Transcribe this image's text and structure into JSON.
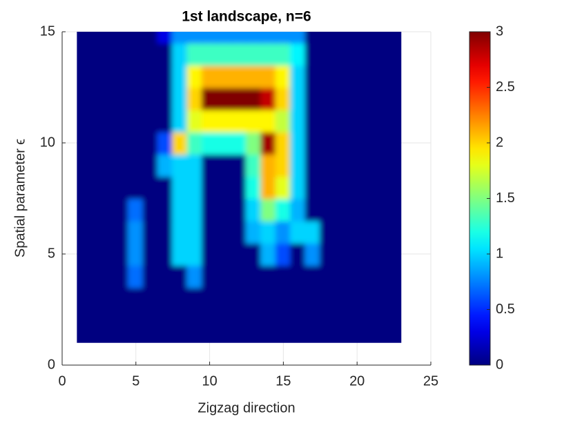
{
  "chart_data": {
    "type": "heatmap",
    "title": "1st landscape, n=6",
    "xlabel": "Zigzag direction",
    "ylabel": "Spatial parameter ϵ",
    "colormap": "jet",
    "grid": true,
    "xlim": [
      0,
      25
    ],
    "xticks": [
      0,
      5,
      10,
      15,
      20,
      25
    ],
    "ylim": [
      0,
      15
    ],
    "yticks": [
      0,
      5,
      10,
      15
    ],
    "clim": [
      0,
      3
    ],
    "cticks": [
      0,
      0.5,
      1,
      1.5,
      2,
      2.5,
      3
    ],
    "x": [
      1,
      2,
      3,
      4,
      5,
      6,
      7,
      8,
      9,
      10,
      11,
      12,
      13,
      14,
      15,
      16,
      17,
      18,
      19,
      20,
      21,
      22,
      23
    ],
    "y": [
      1,
      2,
      3,
      4,
      5,
      6,
      7,
      8,
      9,
      10,
      11,
      12,
      13,
      14,
      15
    ],
    "z": [
      [
        0,
        0,
        0,
        0,
        0,
        0,
        0,
        0,
        0,
        0,
        0,
        0,
        0,
        0,
        0,
        0,
        0,
        0,
        0,
        0,
        0,
        0,
        0
      ],
      [
        0,
        0,
        0,
        0,
        0,
        0,
        0,
        0,
        0,
        0,
        0,
        0,
        0,
        0,
        0,
        0,
        0,
        0,
        0,
        0,
        0,
        0,
        0
      ],
      [
        0,
        0,
        0,
        0,
        0,
        0,
        0,
        0,
        0,
        0,
        0,
        0,
        0,
        0,
        0,
        0,
        0,
        0,
        0,
        0,
        0,
        0,
        0
      ],
      [
        0,
        0,
        0,
        0,
        0.7,
        0,
        0,
        0,
        0.8,
        0,
        0,
        0,
        0,
        0,
        0,
        0,
        0,
        0,
        0,
        0,
        0,
        0,
        0
      ],
      [
        0,
        0,
        0,
        0,
        0.8,
        0,
        0,
        1,
        1,
        0,
        0,
        0,
        0,
        0.9,
        0.6,
        0,
        0.8,
        0,
        0,
        0,
        0,
        0,
        0
      ],
      [
        0,
        0,
        0,
        0,
        0.8,
        0,
        0,
        1,
        1,
        0,
        0,
        0,
        0.9,
        1,
        0.8,
        1,
        1,
        0,
        0,
        0,
        0,
        0,
        0
      ],
      [
        0,
        0,
        0,
        0,
        0.7,
        0,
        0,
        1,
        1,
        0,
        0,
        0,
        1,
        1.5,
        1.2,
        0.9,
        0,
        0,
        0,
        0,
        0,
        0,
        0
      ],
      [
        0,
        0,
        0,
        0,
        0,
        0,
        0,
        1,
        1,
        0,
        0,
        0,
        1.2,
        2.1,
        1.8,
        1,
        0,
        0,
        0,
        0,
        0,
        0,
        0
      ],
      [
        0,
        0,
        0,
        0,
        0,
        0,
        0.9,
        1,
        1,
        0,
        0,
        0,
        1.3,
        2.1,
        2,
        1,
        0,
        0,
        0,
        0,
        0,
        0,
        0
      ],
      [
        0,
        0,
        0,
        0,
        0,
        0,
        0.6,
        2,
        1.3,
        1.2,
        1.2,
        1.2,
        1.5,
        2.9,
        2,
        1,
        0,
        0,
        0,
        0,
        0,
        0,
        0
      ],
      [
        0,
        0,
        0,
        0,
        0,
        0,
        0,
        1,
        1.8,
        1.9,
        1.9,
        1.9,
        1.9,
        1.9,
        1.7,
        1,
        0,
        0,
        0,
        0,
        0,
        0,
        0
      ],
      [
        0,
        0,
        0,
        0,
        0,
        0,
        0,
        1,
        2,
        3,
        3,
        3,
        3,
        2.8,
        2,
        1,
        0,
        0,
        0,
        0,
        0,
        0,
        0
      ],
      [
        0,
        0,
        0,
        0,
        0,
        0,
        0,
        1,
        1.9,
        2.1,
        2.1,
        2.1,
        2.1,
        2.1,
        1.9,
        1,
        0,
        0,
        0,
        0,
        0,
        0,
        0
      ],
      [
        0,
        0,
        0,
        0,
        0,
        0,
        0,
        1,
        1.3,
        1.3,
        1.3,
        1.3,
        1.3,
        1.3,
        1.3,
        1.1,
        0,
        0,
        0,
        0,
        0,
        0,
        0
      ],
      [
        0,
        0,
        0,
        0,
        0,
        0,
        0.3,
        0.8,
        0.8,
        0.8,
        0.8,
        0.8,
        0.8,
        0.8,
        0.8,
        0.8,
        0,
        0,
        0,
        0,
        0,
        0,
        0
      ]
    ]
  }
}
